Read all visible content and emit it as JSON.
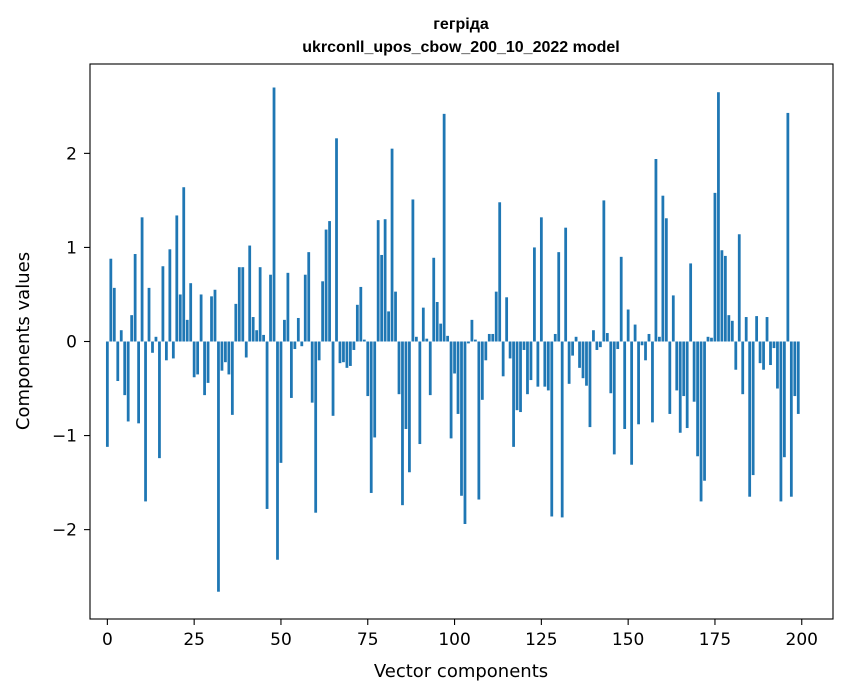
{
  "chart_data": {
    "type": "bar",
    "title_line1": "гегріда",
    "title_line2": "ukrconll_upos_cbow_200_10_2022 model",
    "xlabel": "Vector components",
    "ylabel": "Components values",
    "xlim": [
      -5,
      209
    ],
    "ylim": [
      -2.95,
      2.95
    ],
    "xticks": [
      0,
      25,
      50,
      75,
      100,
      125,
      150,
      175,
      200
    ],
    "xtick_labels": [
      "0",
      "25",
      "50",
      "75",
      "100",
      "125",
      "150",
      "175",
      "200"
    ],
    "yticks": [
      -2,
      -1,
      0,
      1,
      2
    ],
    "ytick_labels": [
      "−2",
      "−1",
      "0",
      "1",
      "2"
    ],
    "bar_color": "#1f77b4",
    "grid": false,
    "x": [
      0,
      1,
      2,
      3,
      4,
      5,
      6,
      7,
      8,
      9,
      10,
      11,
      12,
      13,
      14,
      15,
      16,
      17,
      18,
      19,
      20,
      21,
      22,
      23,
      24,
      25,
      26,
      27,
      28,
      29,
      30,
      31,
      32,
      33,
      34,
      35,
      36,
      37,
      38,
      39,
      40,
      41,
      42,
      43,
      44,
      45,
      46,
      47,
      48,
      49,
      50,
      51,
      52,
      53,
      54,
      55,
      56,
      57,
      58,
      59,
      60,
      61,
      62,
      63,
      64,
      65,
      66,
      67,
      68,
      69,
      70,
      71,
      72,
      73,
      74,
      75,
      76,
      77,
      78,
      79,
      80,
      81,
      82,
      83,
      84,
      85,
      86,
      87,
      88,
      89,
      90,
      91,
      92,
      93,
      94,
      95,
      96,
      97,
      98,
      99,
      100,
      101,
      102,
      103,
      104,
      105,
      106,
      107,
      108,
      109,
      110,
      111,
      112,
      113,
      114,
      115,
      116,
      117,
      118,
      119,
      120,
      121,
      122,
      123,
      124,
      125,
      126,
      127,
      128,
      129,
      130,
      131,
      132,
      133,
      134,
      135,
      136,
      137,
      138,
      139,
      140,
      141,
      142,
      143,
      144,
      145,
      146,
      147,
      148,
      149,
      150,
      151,
      152,
      153,
      154,
      155,
      156,
      157,
      158,
      159,
      160,
      161,
      162,
      163,
      164,
      165,
      166,
      167,
      168,
      169,
      170,
      171,
      172,
      173,
      174,
      175,
      176,
      177,
      178,
      179,
      180,
      181,
      182,
      183,
      184,
      185,
      186,
      187,
      188,
      189,
      190,
      191,
      192,
      193,
      194,
      195,
      196,
      197,
      198,
      199
    ],
    "values": [
      -1.12,
      0.88,
      0.57,
      -0.42,
      0.12,
      -0.57,
      -0.85,
      0.28,
      0.93,
      -0.87,
      1.32,
      -1.7,
      0.57,
      -0.12,
      0.05,
      -1.24,
      0.8,
      -0.2,
      0.98,
      -0.18,
      1.34,
      0.5,
      1.64,
      0.23,
      0.62,
      -0.38,
      -0.35,
      0.5,
      -0.57,
      -0.44,
      0.48,
      0.55,
      -2.66,
      -0.31,
      -0.22,
      -0.35,
      -0.78,
      0.4,
      0.79,
      0.79,
      -0.17,
      1.02,
      0.26,
      0.12,
      0.79,
      0.07,
      -1.78,
      0.71,
      2.7,
      -2.32,
      -1.29,
      0.23,
      0.73,
      -0.6,
      -0.08,
      0.25,
      -0.05,
      0.71,
      0.95,
      -0.65,
      -1.82,
      -0.2,
      0.64,
      1.19,
      1.28,
      -0.79,
      2.16,
      -0.23,
      -0.22,
      -0.28,
      -0.26,
      -0.09,
      0.39,
      0.58,
      0.02,
      -0.58,
      -1.61,
      -1.02,
      1.29,
      0.92,
      1.3,
      0.32,
      2.05,
      0.53,
      -0.56,
      -1.74,
      -0.93,
      -1.39,
      1.51,
      0.05,
      -1.09,
      0.36,
      0.03,
      -0.57,
      0.89,
      0.42,
      0.19,
      2.42,
      0.06,
      -1.03,
      -0.34,
      -0.77,
      -1.64,
      -1.94,
      -0.02,
      0.23,
      0.02,
      -1.68,
      -0.62,
      -0.2,
      0.08,
      0.08,
      0.53,
      1.48,
      -0.37,
      0.47,
      -0.18,
      -1.12,
      -0.73,
      -0.75,
      -0.09,
      -0.56,
      -0.41,
      1.0,
      -0.48,
      1.32,
      -0.48,
      -0.52,
      -1.86,
      0.08,
      0.95,
      -1.87,
      1.21,
      -0.45,
      -0.15,
      0.05,
      -0.28,
      -0.39,
      -0.47,
      -0.91,
      0.12,
      -0.09,
      -0.06,
      1.5,
      0.09,
      -0.55,
      -1.2,
      -0.08,
      0.9,
      -0.93,
      0.34,
      -1.31,
      0.18,
      -0.88,
      -0.04,
      -0.2,
      0.08,
      -0.86,
      1.94,
      0.05,
      1.55,
      1.31,
      -0.77,
      0.49,
      -0.52,
      -0.97,
      -0.58,
      -0.92,
      0.83,
      -0.64,
      -1.22,
      -1.7,
      -1.48,
      0.05,
      0.04,
      1.58,
      2.65,
      0.97,
      0.91,
      0.28,
      0.22,
      -0.3,
      1.14,
      -0.56,
      0.26,
      -1.65,
      -1.42,
      0.27,
      -0.23,
      -0.3,
      0.26,
      -0.25,
      -0.07,
      -0.5,
      -1.7,
      -1.23,
      2.43,
      -1.65,
      -0.58,
      -0.77
    ]
  }
}
